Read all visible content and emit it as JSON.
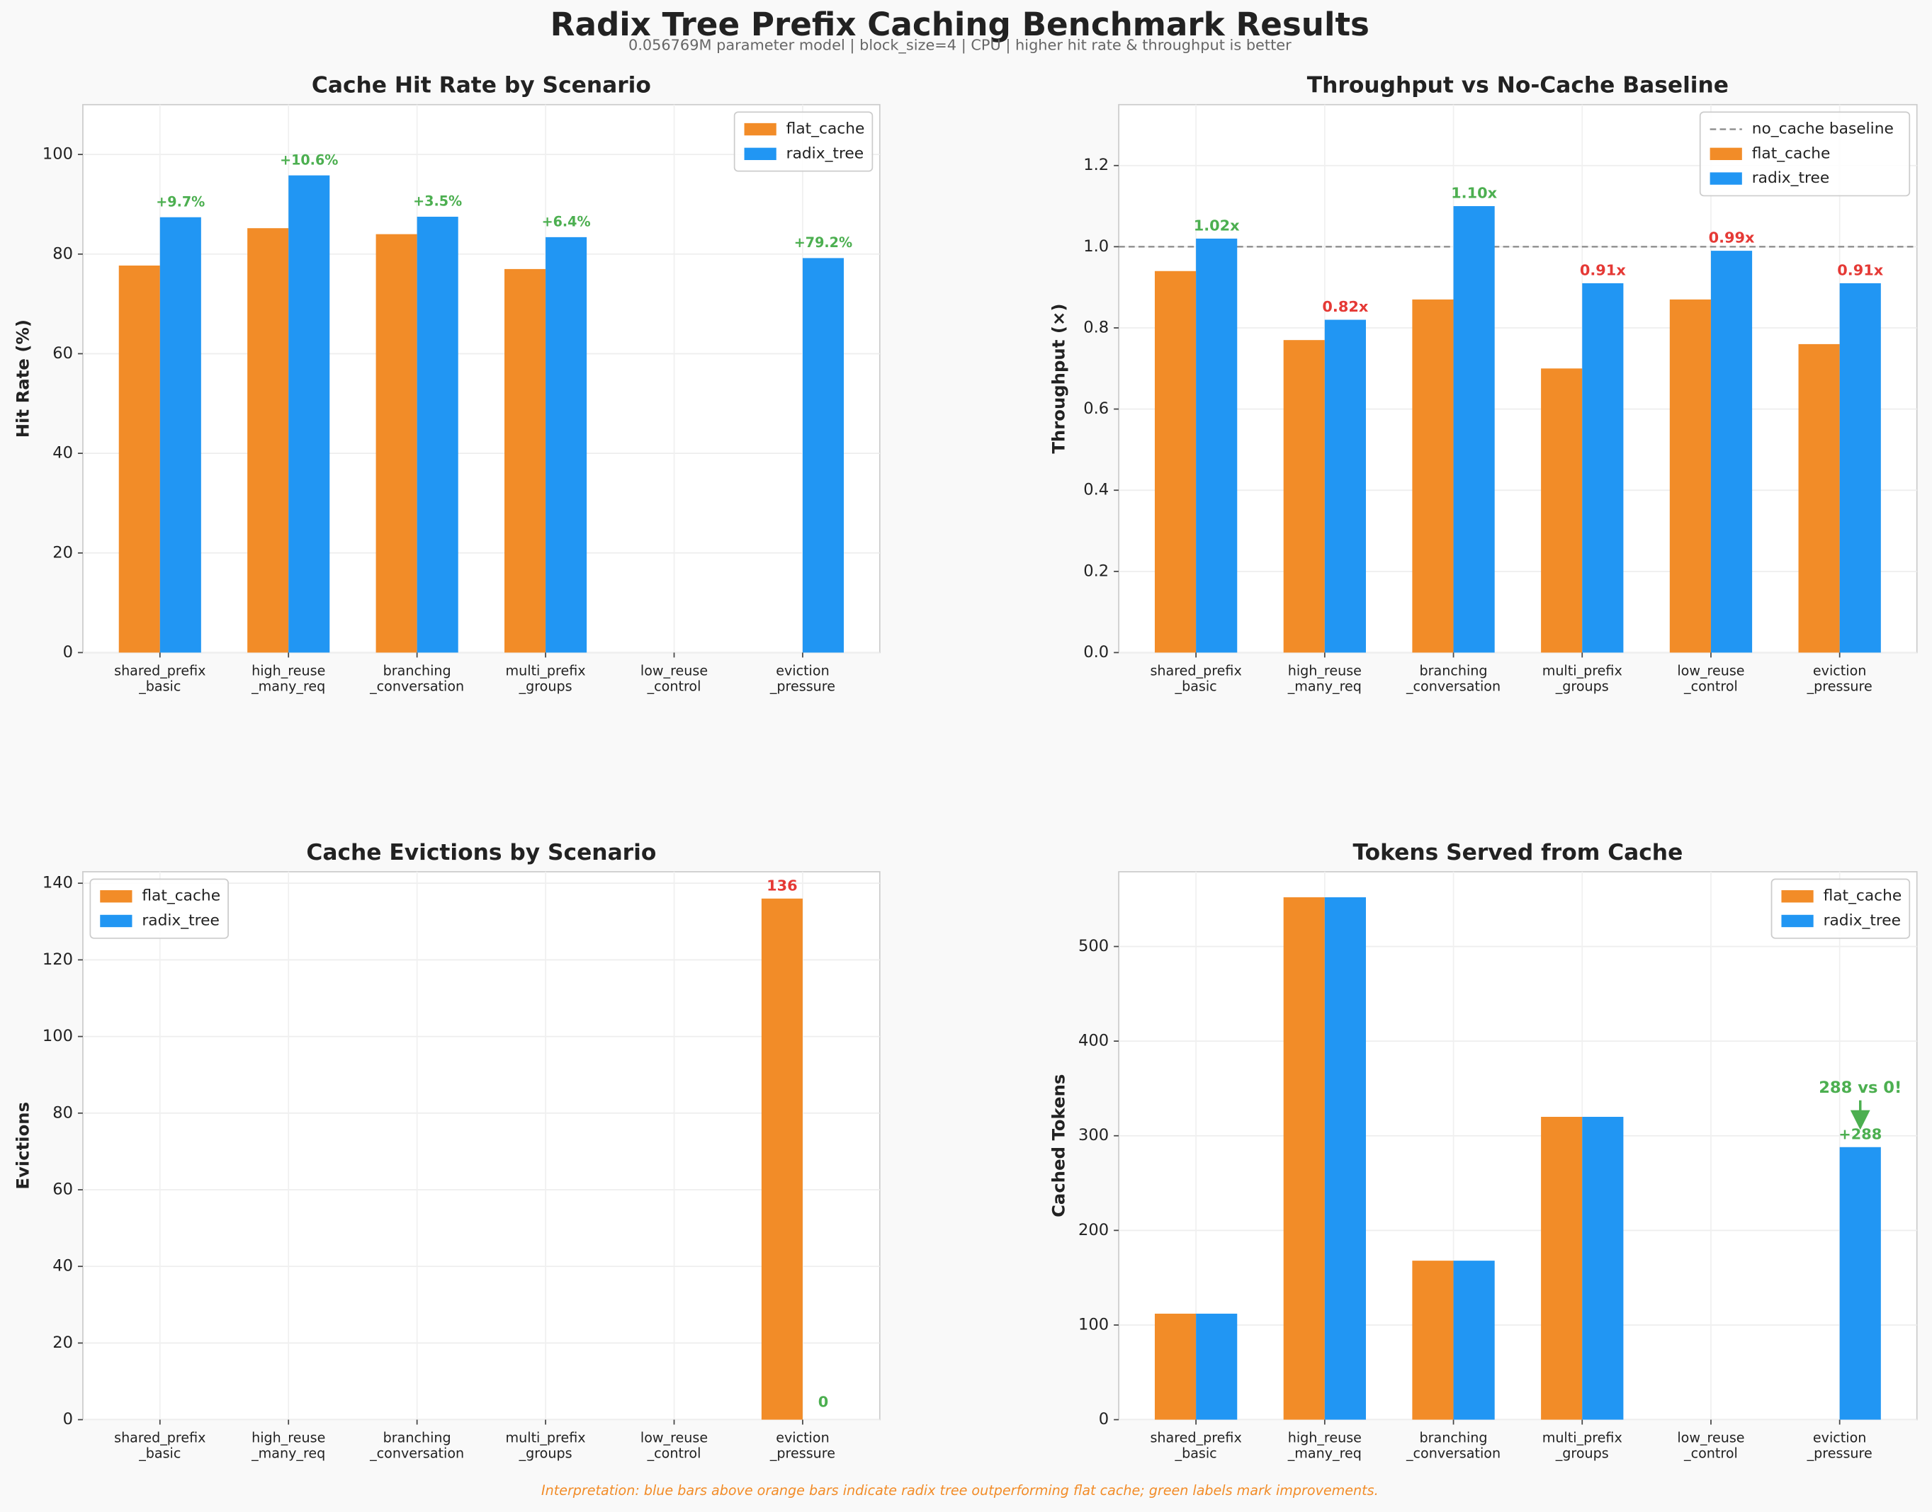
{
  "title": "Radix Tree Prefix Caching Benchmark Results",
  "subtitle": "0.056769M parameter model | block_size=4 | CPU | higher hit rate & throughput is better",
  "footer": "Interpretation: blue bars above orange bars indicate radix tree outperforming flat cache; green labels mark improvements.",
  "chart_data": [
    {
      "type": "bar",
      "title": "Cache Hit Rate by Scenario",
      "y_label": "Hit Rate (%)",
      "categories": [
        "shared_prefix\n_basic",
        "high_reuse\n_many_req",
        "branching\n_conversation",
        "multi_prefix\n_groups",
        "low_reuse\n_control",
        "eviction\n_pressure"
      ],
      "series": [
        {
          "name": "flat_cache",
          "color": "#f28c28",
          "values": [
            77.7,
            85.2,
            84.0,
            77.0,
            0,
            0
          ]
        },
        {
          "name": "radix_tree",
          "color": "#2196f3",
          "values": [
            87.4,
            95.8,
            87.5,
            83.4,
            0,
            79.2
          ]
        }
      ],
      "improvement_labels": [
        "+9.7%",
        "+10.6%",
        "+3.5%",
        "+6.4%",
        null,
        "+79.2%"
      ],
      "label_color": "#4caf50",
      "ylim": [
        0,
        110
      ],
      "yticks": [
        0,
        20,
        40,
        60,
        80,
        100
      ],
      "grid": true,
      "legend": "upper right"
    },
    {
      "type": "bar",
      "title": "Throughput vs No-Cache Baseline",
      "y_label": "Throughput (×)",
      "categories": [
        "shared_prefix\n_basic",
        "high_reuse\n_many_req",
        "branching\n_conversation",
        "multi_prefix\n_groups",
        "low_reuse\n_control",
        "eviction\n_pressure"
      ],
      "series": [
        {
          "name": "flat_cache",
          "color": "#f28c28",
          "values": [
            0.94,
            0.77,
            0.87,
            0.7,
            0.87,
            0.76
          ]
        },
        {
          "name": "radix_tree",
          "color": "#2196f3",
          "values": [
            1.02,
            0.82,
            1.1,
            0.91,
            0.99,
            0.91
          ],
          "value_labels": [
            "1.02x",
            "0.82x",
            "1.10x",
            "0.91x",
            "0.99x",
            "0.91x"
          ],
          "label_colors": [
            "#4caf50",
            "#e53935",
            "#4caf50",
            "#e53935",
            "#e53935",
            "#e53935"
          ]
        }
      ],
      "baseline": {
        "name": "no_cache baseline",
        "value": 1.0,
        "color": "#888888"
      },
      "ylim": [
        0,
        1.35
      ],
      "yticks": [
        {
          "value": 0,
          "label": "0.0"
        },
        0.2,
        0.4,
        0.6,
        0.8,
        {
          "value": 1,
          "label": "1.0"
        },
        1.2
      ],
      "grid": true,
      "legend": "upper right"
    },
    {
      "type": "bar",
      "title": "Cache Evictions by Scenario",
      "y_label": "Evictions",
      "categories": [
        "shared_prefix\n_basic",
        "high_reuse\n_many_req",
        "branching\n_conversation",
        "multi_prefix\n_groups",
        "low_reuse\n_control",
        "eviction\n_pressure"
      ],
      "series": [
        {
          "name": "flat_cache",
          "color": "#f28c28",
          "values": [
            0,
            0,
            0,
            0,
            0,
            136
          ],
          "value_labels": [
            null,
            null,
            null,
            null,
            null,
            "136"
          ],
          "label_color": "#e53935"
        },
        {
          "name": "radix_tree",
          "color": "#2196f3",
          "values": [
            0,
            0,
            0,
            0,
            0,
            0
          ],
          "value_labels": [
            null,
            null,
            null,
            null,
            null,
            "0"
          ],
          "label_color": "#4caf50"
        }
      ],
      "ylim": [
        0,
        143
      ],
      "yticks": [
        0,
        20,
        40,
        60,
        80,
        100,
        120,
        140
      ],
      "grid": true,
      "legend": "upper left"
    },
    {
      "type": "bar",
      "title": "Tokens Served from Cache",
      "y_label": "Cached Tokens",
      "categories": [
        "shared_prefix\n_basic",
        "high_reuse\n_many_req",
        "branching\n_conversation",
        "multi_prefix\n_groups",
        "low_reuse\n_control",
        "eviction\n_pressure"
      ],
      "series": [
        {
          "name": "flat_cache",
          "color": "#f28c28",
          "values": [
            112,
            552,
            168,
            320,
            0,
            0
          ]
        },
        {
          "name": "radix_tree",
          "color": "#2196f3",
          "values": [
            112,
            552,
            168,
            320,
            0,
            288
          ],
          "value_labels": [
            null,
            null,
            null,
            null,
            null,
            "+288"
          ],
          "label_color": "#4caf50"
        }
      ],
      "callouts": [
        null,
        null,
        null,
        null,
        null,
        "288 vs 0!"
      ],
      "label_color": "#4caf50",
      "ylim": [
        0,
        579
      ],
      "yticks": [
        0,
        100,
        200,
        300,
        400,
        500
      ],
      "grid": true,
      "legend": "upper right"
    }
  ]
}
